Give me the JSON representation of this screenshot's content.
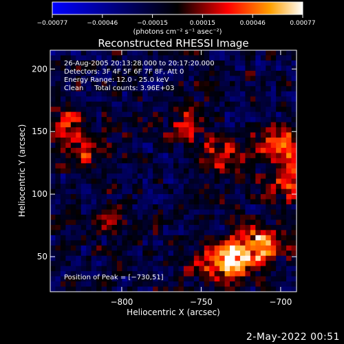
{
  "chart_data": {
    "type": "heatmap",
    "title": "Reconstructed RHESSI Image",
    "xlabel": "Heliocentric X (arcsec)",
    "ylabel": "Heliocentric Y (arcsec)",
    "xlim": [
      -845,
      -690
    ],
    "ylim": [
      22,
      215
    ],
    "xticks": [
      -800,
      -750,
      -700
    ],
    "xtick_labels": [
      "−800",
      "−750",
      "−700"
    ],
    "yticks": [
      50,
      100,
      150,
      200
    ],
    "ytick_labels": [
      "50",
      "100",
      "150",
      "200"
    ],
    "colorbar": {
      "tick_labels": [
        "−0.00077",
        "−0.00046",
        "−0.00015",
        "0.00015",
        "0.00046",
        "0.00077"
      ],
      "range": [
        -0.00077,
        0.00077
      ],
      "unit_label": "(photons cm⁻² s⁻¹ asec⁻²)",
      "colormap": [
        "#0000ff",
        "#000000",
        "#ff0000",
        "#ffa000",
        "#ffffff"
      ]
    },
    "annotations": [
      "26-Aug-2005 20:13:28.000 to 20:17:20.000",
      "Detectors: 3F 4F 5F 6F 7F 8F, Att 0",
      "Energy Range: 12.0 - 25.0 keV",
      "Clean     Total counts: 3.96E+03"
    ],
    "peak_label": "Position of Peak = [−730,51]",
    "peak": [
      -730,
      51
    ],
    "bright_regions": [
      {
        "x": -728,
        "y": 50,
        "value": 0.00077
      },
      {
        "x": -712,
        "y": 60,
        "value": 0.0006
      },
      {
        "x": -700,
        "y": 140,
        "value": 0.0006
      },
      {
        "x": -693,
        "y": 110,
        "value": 0.0005
      },
      {
        "x": -738,
        "y": 130,
        "value": 0.0004
      },
      {
        "x": -835,
        "y": 160,
        "value": 0.00045
      },
      {
        "x": -822,
        "y": 135,
        "value": 0.0004
      },
      {
        "x": -742,
        "y": 40,
        "value": 0.0004
      },
      {
        "x": -760,
        "y": 155,
        "value": 0.0003
      },
      {
        "x": -805,
        "y": 80,
        "value": 0.0003
      }
    ],
    "grid": false,
    "legend": "none"
  },
  "footer": {
    "date": "2-May-2022 00:51"
  }
}
